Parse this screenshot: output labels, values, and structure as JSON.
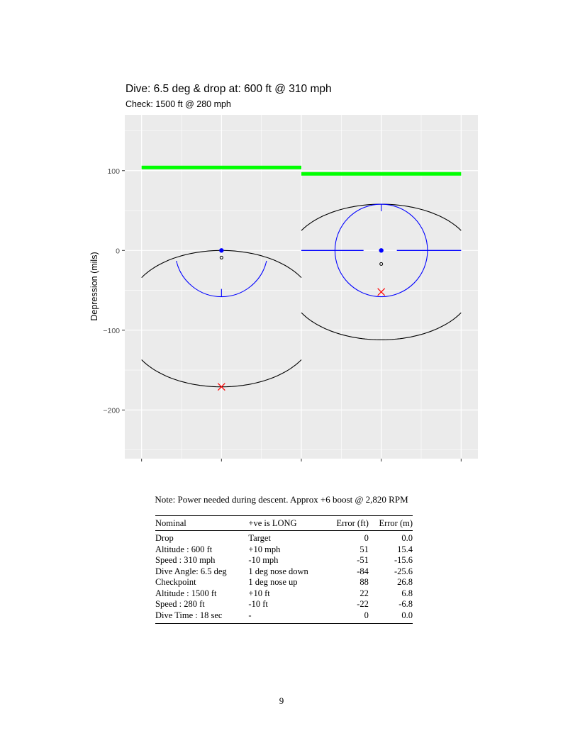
{
  "chart_data": {
    "type": "line",
    "title": "Dive: 6.5 deg & drop at: 600 ft @ 310 mph",
    "subtitle": "Check: 1500 ft @ 280 mph",
    "xlabel": "",
    "ylabel": "Depression (mils)",
    "xlim": [
      -0.21,
      4.21
    ],
    "ylim": [
      -261,
      170
    ],
    "x_ticks": [
      0,
      1,
      2,
      3,
      4
    ],
    "x_tick_labels": [
      "",
      "",
      "",
      "",
      ""
    ],
    "y_ticks": [
      100,
      0,
      -100,
      -200
    ],
    "y_tick_labels": [
      "100",
      "0",
      "−100",
      "−200"
    ],
    "grid": true,
    "panel_background": "#ebebeb",
    "colors": {
      "green": "#00ff00",
      "blue": "#0000ff",
      "black": "#000000",
      "red": "#ff0000"
    },
    "green_bars": [
      {
        "x": [
          0,
          2
        ],
        "y": 104
      },
      {
        "x": [
          2,
          4
        ],
        "y": 96
      }
    ],
    "black_arcs": [
      {
        "x": [
          0,
          2
        ],
        "center_x": 1,
        "end_y": -34,
        "apex_y": 0
      },
      {
        "x": [
          0,
          2
        ],
        "center_x": 1,
        "end_y": -137,
        "apex_y": -171
      },
      {
        "x": [
          2,
          4
        ],
        "center_x": 3,
        "end_y": 25,
        "apex_y": 58
      },
      {
        "x": [
          2,
          4
        ],
        "center_x": 3,
        "end_y": -78,
        "apex_y": -112
      }
    ],
    "blue_reticles": [
      {
        "center": [
          1,
          0
        ],
        "radius_mils": 58,
        "arc": "lower",
        "tick": "bottom"
      },
      {
        "center": [
          3,
          0
        ],
        "radius_mils": 58,
        "arc": "full",
        "tick": "top",
        "crosshair": true
      }
    ],
    "blue_points": [
      [
        1,
        0
      ],
      [
        3,
        0
      ]
    ],
    "open_points": [
      [
        1,
        -9
      ],
      [
        3,
        -17
      ]
    ],
    "red_crosses": [
      [
        1,
        -171
      ],
      [
        3,
        -52
      ]
    ]
  },
  "note": "Note: Power needed during descent. Approx +6 boost @ 2,820 RPM",
  "table": {
    "headers": [
      "Nominal",
      "+ve is LONG",
      "Error (ft)",
      "Error (m)"
    ],
    "rows": [
      [
        "Drop",
        "Target",
        "0",
        "0.0"
      ],
      [
        "Altitude : 600 ft",
        "+10 mph",
        "51",
        "15.4"
      ],
      [
        "Speed : 310 mph",
        "-10 mph",
        "-51",
        "-15.6"
      ],
      [
        "Dive Angle: 6.5 deg",
        "1 deg nose down",
        "-84",
        "-25.6"
      ],
      [
        "Checkpoint",
        "1 deg nose up",
        "88",
        "26.8"
      ],
      [
        "Altitude : 1500 ft",
        "+10 ft",
        "22",
        "6.8"
      ],
      [
        "Speed : 280 ft",
        "-10 ft",
        "-22",
        "-6.8"
      ],
      [
        "Dive Time : 18 sec",
        "-",
        "0",
        "0.0"
      ]
    ]
  },
  "page_number": "9"
}
